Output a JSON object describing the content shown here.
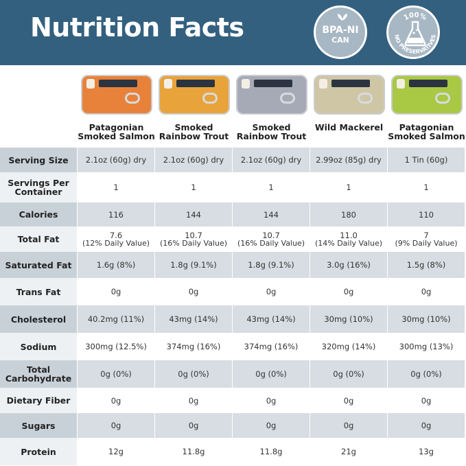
{
  "header": {
    "title": "Nutrition Facts",
    "badges": [
      {
        "line1": "BPA-NI",
        "line2": "CAN",
        "icon": "leaf-icon"
      },
      {
        "top_text": "100%",
        "bottom_text": "NO PRESERVATIVES",
        "icon": "flask-icon"
      }
    ]
  },
  "products": [
    {
      "name": "Patagonian Smoked Salmon",
      "color": "#e8823a"
    },
    {
      "name": "Smoked Rainbow Trout",
      "color": "#e9a33b"
    },
    {
      "name": "Smoked Rainbow Trout",
      "color": "#a6aab6"
    },
    {
      "name": "Wild Mackerel",
      "color": "#cfc6a6"
    },
    {
      "name": "Patagonian Smoked Salmon",
      "color": "#a9c844"
    }
  ],
  "rows": [
    {
      "label": "Serving Size",
      "values": [
        "2.1oz (60g) dry",
        "2.1oz (60g) dry",
        "2.1oz (60g) dry",
        "2.99oz (85g) dry",
        "1 Tin (60g)"
      ]
    },
    {
      "label": "Servings Per Container",
      "values": [
        "1",
        "1",
        "1",
        "1",
        "1"
      ]
    },
    {
      "label": "Calories",
      "values": [
        "116",
        "144",
        "144",
        "180",
        "110"
      ]
    },
    {
      "label": "Total Fat",
      "values": [
        "7.6",
        "10.7",
        "10.7",
        "11.0",
        "7"
      ],
      "subs": [
        "(12% Daily Value)",
        "(16% Daily Value)",
        "(16% Daily Value)",
        "(14% Daily Value)",
        "(9% Daily Value)"
      ]
    },
    {
      "label": "Saturated Fat",
      "values": [
        "1.6g (8%)",
        "1.8g (9.1%)",
        "1.8g (9.1%)",
        "3.0g (16%)",
        "1.5g (8%)"
      ]
    },
    {
      "label": "Trans Fat",
      "values": [
        "0g",
        "0g",
        "0g",
        "0g",
        "0g"
      ]
    },
    {
      "label": "Cholesterol",
      "values": [
        "40.2mg (11%)",
        "43mg (14%)",
        "43mg (14%)",
        "30mg (10%)",
        "30mg (10%)"
      ]
    },
    {
      "label": "Sodium",
      "values": [
        "300mg (12.5%)",
        "374mg (16%)",
        "374mg (16%)",
        "320mg (14%)",
        "300mg (13%)"
      ]
    },
    {
      "label": "Total Carbohydrate",
      "values": [
        "0g (0%)",
        "0g (0%)",
        "0g (0%)",
        "0g (0%)",
        "0g (0%)"
      ]
    },
    {
      "label": "Dietary Fiber",
      "values": [
        "0g",
        "0g",
        "0g",
        "0g",
        "0g"
      ]
    },
    {
      "label": "Sugars",
      "values": [
        "0g",
        "0g",
        "0g",
        "0g",
        "0g"
      ]
    },
    {
      "label": "Protein",
      "values": [
        "12g",
        "11.8g",
        "11.8g",
        "21g",
        "13g"
      ]
    }
  ]
}
